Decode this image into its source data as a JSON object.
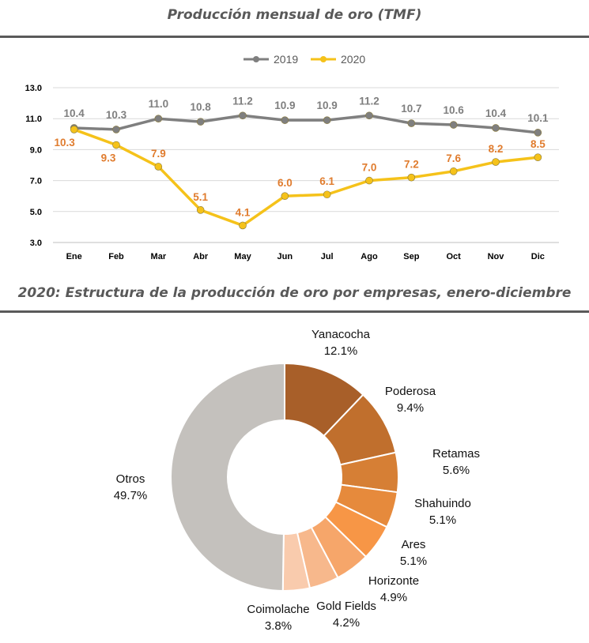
{
  "chart_data": [
    {
      "type": "line",
      "title": "Producción mensual de oro (TMF)",
      "categories": [
        "Ene",
        "Feb",
        "Mar",
        "Abr",
        "May",
        "Jun",
        "Jul",
        "Ago",
        "Sep",
        "Oct",
        "Nov",
        "Dic"
      ],
      "series": [
        {
          "name": "2019",
          "color": "#7f7f7f",
          "label_color": "#7f7f7f",
          "values": [
            10.4,
            10.3,
            11.0,
            10.8,
            11.2,
            10.9,
            10.9,
            11.2,
            10.7,
            10.6,
            10.4,
            10.1
          ],
          "labels": [
            "10.4",
            "10.3",
            "11.0",
            "10.8",
            "11.2",
            "10.9",
            "10.9",
            "11.2",
            "10.7",
            "10.6",
            "10.4",
            "10.1"
          ]
        },
        {
          "name": "2020",
          "color": "#f5c21a",
          "label_color": "#e07c2e",
          "values": [
            10.3,
            9.3,
            7.9,
            5.1,
            4.1,
            6.0,
            6.1,
            7.0,
            7.2,
            7.6,
            8.2,
            8.5
          ],
          "labels": [
            "10.3",
            "9.3",
            "7.9",
            "5.1",
            "4.1",
            "6.0",
            "6.1",
            "7.0",
            "7.2",
            "7.6",
            "8.2",
            "8.5"
          ]
        }
      ],
      "ylim": [
        3.0,
        13.0
      ],
      "yticks": [
        "3.0",
        "5.0",
        "7.0",
        "9.0",
        "11.0",
        "13.0"
      ],
      "grid": true,
      "legend": "top-center"
    },
    {
      "type": "pie",
      "title": "2020: Estructura de la producción de oro por empresas, enero-diciembre",
      "donut": true,
      "slices": [
        {
          "label": "Yanacocha",
          "value": 12.1,
          "pct": "12.1%",
          "color": "#a85f29"
        },
        {
          "label": "Poderosa",
          "value": 9.4,
          "pct": "9.4%",
          "color": "#c06f2d"
        },
        {
          "label": "Retamas",
          "value": 5.6,
          "pct": "5.6%",
          "color": "#d67f35"
        },
        {
          "label": "Shahuindo",
          "value": 5.1,
          "pct": "5.1%",
          "color": "#e68a3c"
        },
        {
          "label": "Ares",
          "value": 5.1,
          "pct": "5.1%",
          "color": "#f79646"
        },
        {
          "label": "Horizonte",
          "value": 4.9,
          "pct": "4.9%",
          "color": "#f6a66a"
        },
        {
          "label": "Gold Fields",
          "value": 4.2,
          "pct": "4.2%",
          "color": "#f7b88c"
        },
        {
          "label": "Coimolache",
          "value": 3.8,
          "pct": "3.8%",
          "color": "#f9cbad"
        },
        {
          "label": "Otros",
          "value": 49.7,
          "pct": "49.7%",
          "color": "#c4c1bd"
        }
      ]
    }
  ]
}
